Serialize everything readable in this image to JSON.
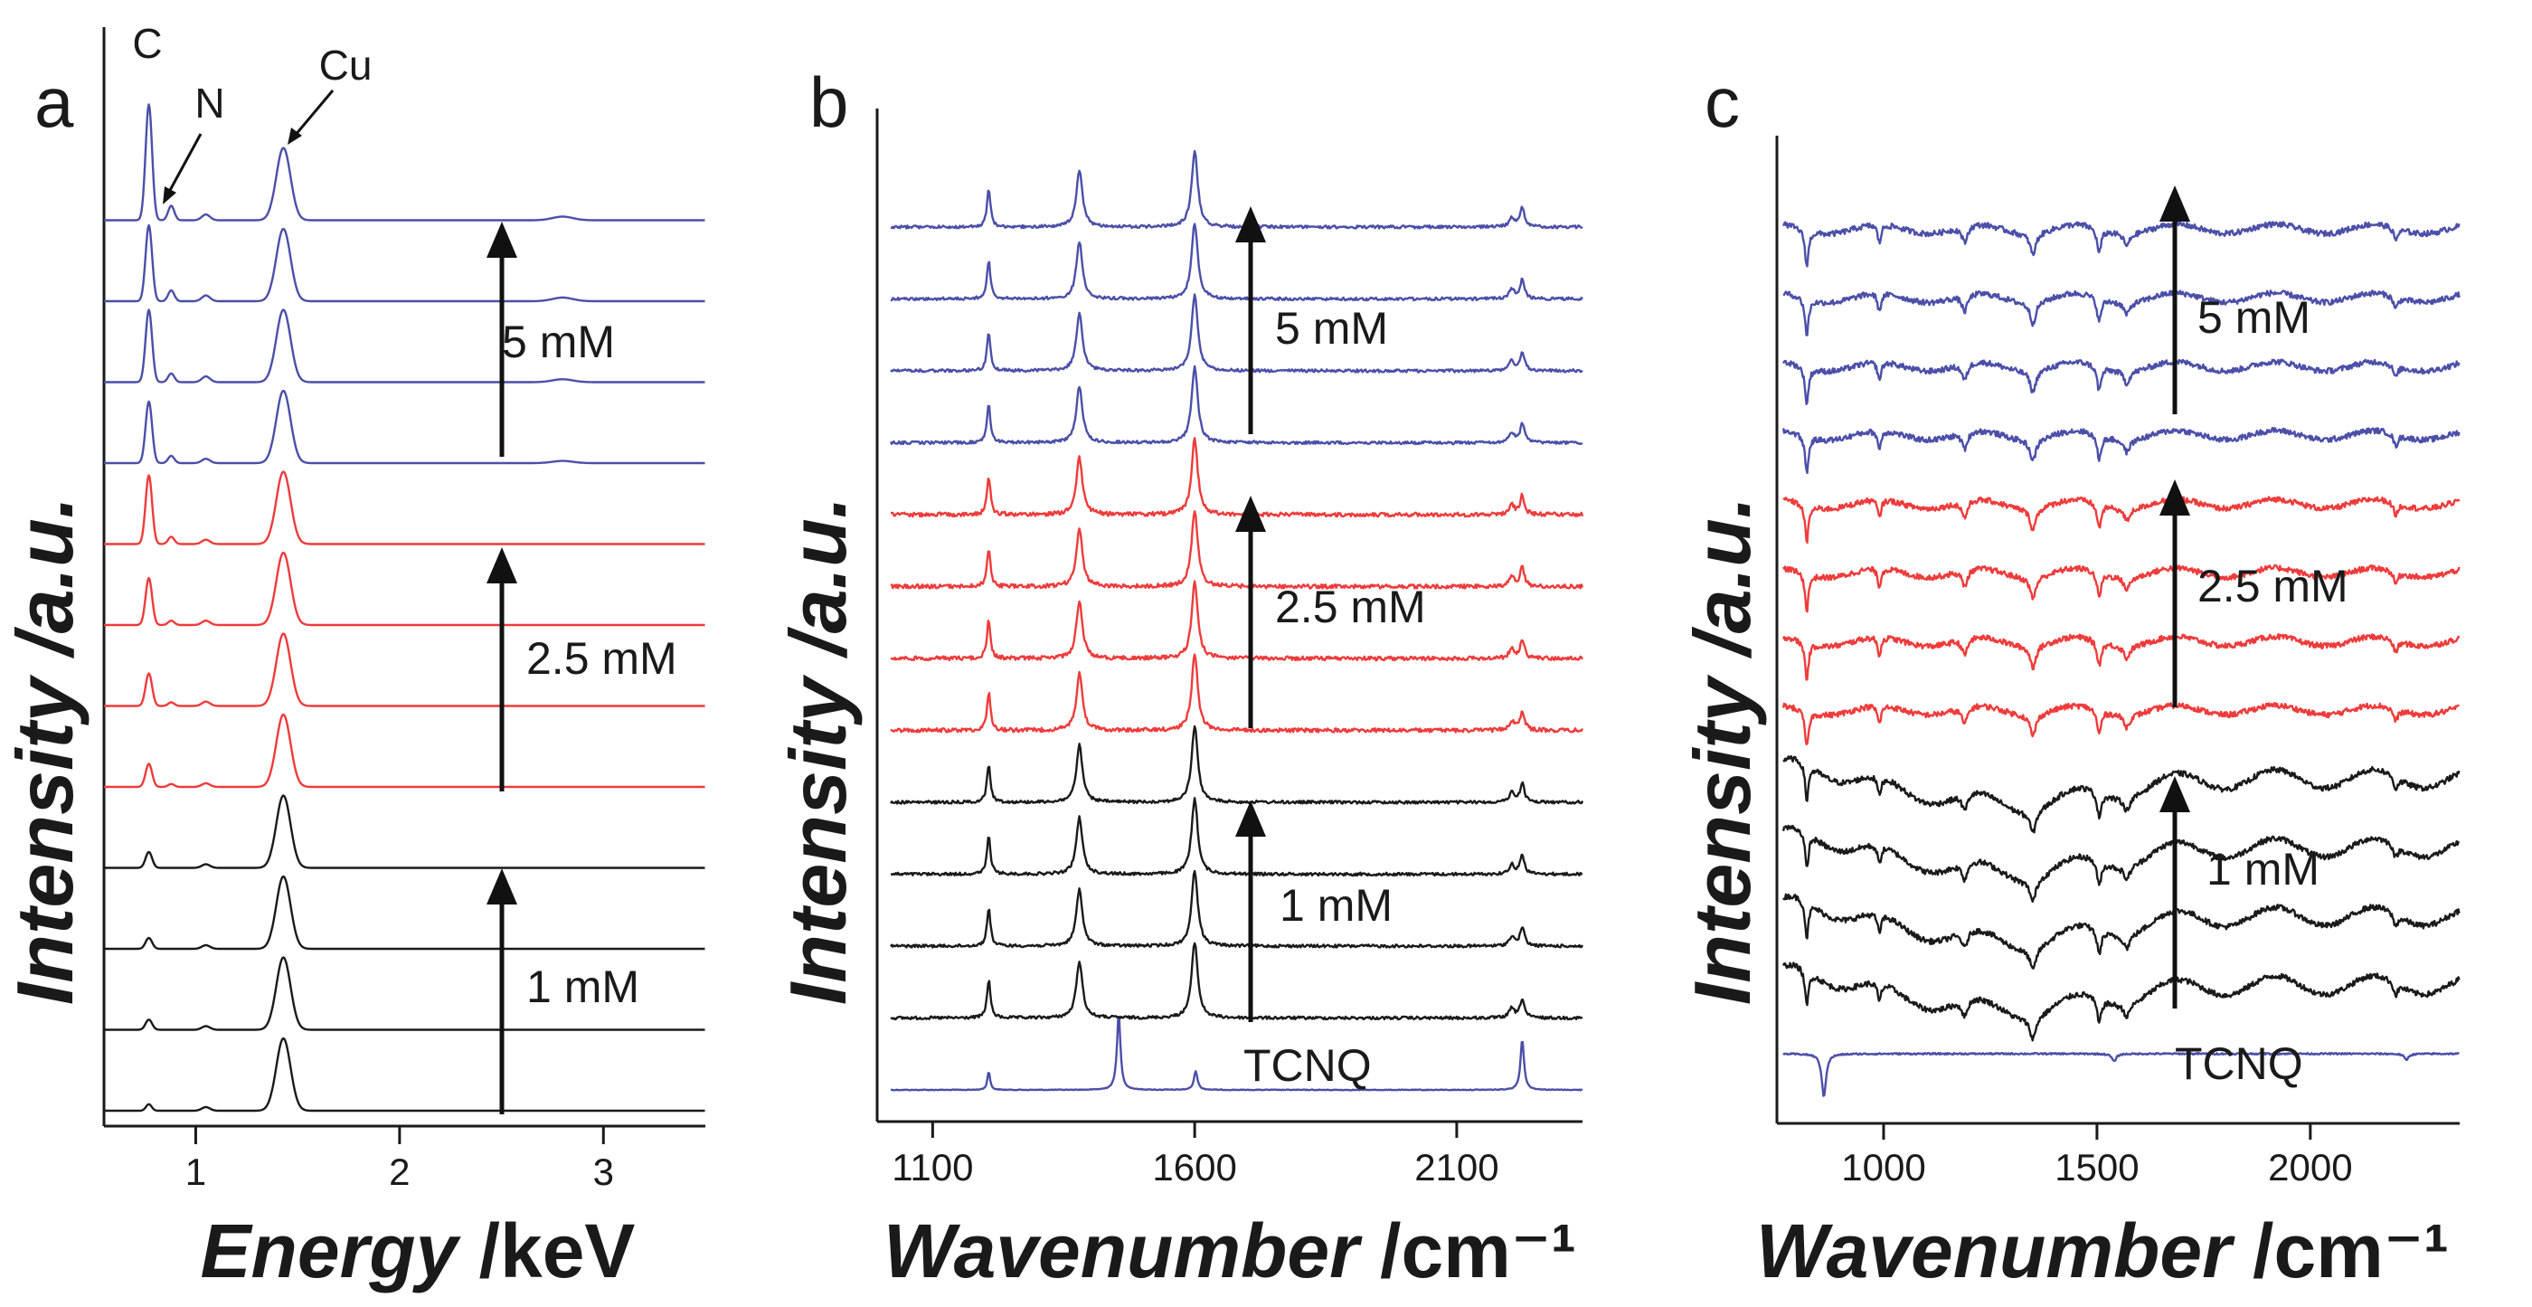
{
  "chart_data": [
    {
      "type": "line",
      "panel": "a",
      "title": "",
      "xlabel_italic": "Energy",
      "xlabel_unit": " /keV",
      "ylabel": "Intensity /a.u.",
      "xlim": [
        0.55,
        3.5
      ],
      "xticks": [
        "1",
        "2",
        "3"
      ],
      "xtick_values": [
        1,
        2,
        3
      ],
      "series_spacing": 1,
      "series": [
        {
          "name": "1 mM",
          "color": "#1a1a1a",
          "count": 4
        },
        {
          "name": "2.5 mM",
          "color": "#ee3b3b",
          "count": 4
        },
        {
          "name": "5 mM",
          "color": "#4b4fa8",
          "count": 4
        }
      ],
      "peaks_by_series": [
        [
          [
            0.77,
            0.09,
            0.014
          ],
          [
            1.05,
            0.05,
            0.02
          ],
          [
            1.43,
            1.0,
            0.035
          ]
        ],
        [
          [
            0.77,
            0.14,
            0.016
          ],
          [
            1.05,
            0.05,
            0.02
          ],
          [
            1.43,
            1.0,
            0.035
          ]
        ],
        [
          [
            0.77,
            0.15,
            0.016
          ],
          [
            1.05,
            0.05,
            0.02
          ],
          [
            1.43,
            1.0,
            0.035
          ]
        ],
        [
          [
            0.77,
            0.22,
            0.016
          ],
          [
            1.05,
            0.05,
            0.02
          ],
          [
            1.43,
            1.0,
            0.035
          ]
        ],
        [
          [
            0.77,
            0.32,
            0.016
          ],
          [
            0.88,
            0.04,
            0.015
          ],
          [
            1.05,
            0.05,
            0.02
          ],
          [
            1.43,
            1.0,
            0.035
          ]
        ],
        [
          [
            0.77,
            0.45,
            0.016
          ],
          [
            0.88,
            0.05,
            0.015
          ],
          [
            1.05,
            0.06,
            0.02
          ],
          [
            1.43,
            1.0,
            0.035
          ]
        ],
        [
          [
            0.77,
            0.65,
            0.016
          ],
          [
            0.88,
            0.06,
            0.015
          ],
          [
            1.05,
            0.06,
            0.02
          ],
          [
            1.43,
            1.0,
            0.035
          ]
        ],
        [
          [
            0.77,
            0.95,
            0.016
          ],
          [
            0.88,
            0.1,
            0.015
          ],
          [
            1.05,
            0.06,
            0.02
          ],
          [
            1.43,
            1.0,
            0.035
          ]
        ],
        [
          [
            0.77,
            0.85,
            0.016
          ],
          [
            0.88,
            0.1,
            0.015
          ],
          [
            1.05,
            0.06,
            0.02
          ],
          [
            1.43,
            1.0,
            0.035
          ],
          [
            2.8,
            0.03,
            0.05
          ]
        ],
        [
          [
            0.77,
            1.0,
            0.016
          ],
          [
            0.88,
            0.12,
            0.015
          ],
          [
            1.05,
            0.08,
            0.02
          ],
          [
            1.43,
            1.0,
            0.035
          ],
          [
            2.8,
            0.04,
            0.05
          ]
        ],
        [
          [
            0.77,
            1.05,
            0.016
          ],
          [
            0.88,
            0.15,
            0.015
          ],
          [
            1.05,
            0.08,
            0.02
          ],
          [
            1.43,
            1.0,
            0.035
          ],
          [
            2.8,
            0.05,
            0.05
          ]
        ],
        [
          [
            0.77,
            1.6,
            0.016
          ],
          [
            0.88,
            0.2,
            0.015
          ],
          [
            1.05,
            0.08,
            0.02
          ],
          [
            1.43,
            1.0,
            0.035
          ],
          [
            2.8,
            0.05,
            0.05
          ]
        ]
      ],
      "concentration_labels": [
        "1 mM",
        "2.5 mM",
        "5 mM"
      ],
      "annotations": [
        {
          "text": "C",
          "x": 0.77
        },
        {
          "text": "N",
          "x": 0.88
        },
        {
          "text": "Cu",
          "x": 1.43
        }
      ]
    },
    {
      "type": "line",
      "panel": "b",
      "title": "",
      "xlabel_italic": "Wavenumber",
      "xlabel_unit": " /cm⁻¹",
      "ylabel": "Intensity /a.u.",
      "xlim": [
        1020,
        2340
      ],
      "xticks": [
        "1100",
        "1600",
        "2100"
      ],
      "xtick_values": [
        1100,
        1600,
        2100
      ],
      "series_spacing": 1,
      "series": [
        {
          "name": "TCNQ",
          "color": "#4b4fa8",
          "count": 1
        },
        {
          "name": "1 mM",
          "color": "#1a1a1a",
          "count": 4
        },
        {
          "name": "2.5 mM",
          "color": "#ee3b3b",
          "count": 4
        },
        {
          "name": "5 mM",
          "color": "#4b4fa8",
          "count": 4
        }
      ],
      "peaks_tcnq": [
        [
          1207,
          0.3,
          3
        ],
        [
          1455,
          1.2,
          4
        ],
        [
          1602,
          0.3,
          4
        ],
        [
          2225,
          0.8,
          4
        ]
      ],
      "peaks_cu_tcnq": [
        [
          1207,
          0.6,
          4
        ],
        [
          1380,
          0.9,
          7
        ],
        [
          1600,
          1.2,
          7
        ],
        [
          2205,
          0.15,
          6
        ],
        [
          2225,
          0.3,
          5
        ]
      ],
      "concentration_labels": [
        "1 mM",
        "2.5 mM",
        "5 mM"
      ],
      "trace_label": "TCNQ"
    },
    {
      "type": "line",
      "panel": "c",
      "title": "",
      "xlabel_italic": "Wavenumber",
      "xlabel_unit": " /cm⁻¹",
      "ylabel": "Intensity /a.u.",
      "xlim": [
        750,
        2350
      ],
      "xticks": [
        "1000",
        "1500",
        "2000"
      ],
      "xtick_values": [
        1000,
        1500,
        2000
      ],
      "series_spacing": 1,
      "series": [
        {
          "name": "TCNQ",
          "color": "#4b4fa8",
          "count": 1
        },
        {
          "name": "1 mM",
          "color": "#1a1a1a",
          "count": 4
        },
        {
          "name": "2.5 mM",
          "color": "#ee3b3b",
          "count": 4
        },
        {
          "name": "5 mM",
          "color": "#4b4fa8",
          "count": 4
        }
      ],
      "bands_tcnq": [
        [
          860,
          -1.4,
          6
        ],
        [
          1540,
          -0.25,
          6
        ],
        [
          2225,
          -0.2,
          6
        ]
      ],
      "bands_cu_tcnq": [
        [
          820,
          -1.2,
          5
        ],
        [
          990,
          -0.6,
          5
        ],
        [
          1190,
          -0.55,
          8
        ],
        [
          1350,
          -0.7,
          8
        ],
        [
          1505,
          -0.8,
          6
        ],
        [
          1570,
          -0.4,
          8
        ],
        [
          2200,
          -0.4,
          6
        ]
      ],
      "concentration_labels": [
        "1 mM",
        "2.5 mM",
        "5 mM"
      ],
      "trace_label": "TCNQ"
    }
  ]
}
